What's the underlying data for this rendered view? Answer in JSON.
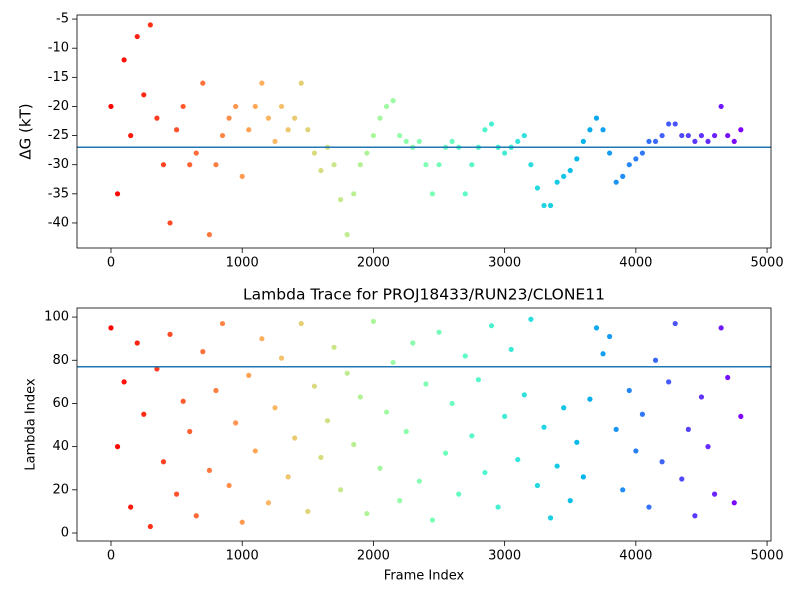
{
  "chart_data": [
    {
      "type": "scatter",
      "ylabel": "ΔG (kT)",
      "colormap": "rainbow_r",
      "hline": -27,
      "hline_color": "#1f77b4",
      "xlim": [
        -259,
        5030
      ],
      "ylim": [
        -44.3,
        -4.3
      ],
      "xticks": [
        0,
        1000,
        2000,
        3000,
        4000,
        5000
      ],
      "yticks": [
        -40,
        -35,
        -30,
        -25,
        -20,
        -15,
        -10,
        -5
      ],
      "x": [
        0,
        50,
        100,
        150,
        200,
        250,
        300,
        350,
        400,
        450,
        500,
        550,
        600,
        650,
        700,
        750,
        800,
        850,
        900,
        950,
        1000,
        1050,
        1100,
        1150,
        1200,
        1250,
        1300,
        1350,
        1400,
        1450,
        1500,
        1550,
        1600,
        1650,
        1700,
        1750,
        1800,
        1850,
        1900,
        1950,
        2000,
        2050,
        2100,
        2150,
        2200,
        2250,
        2300,
        2350,
        2400,
        2450,
        2500,
        2550,
        2600,
        2650,
        2700,
        2750,
        2800,
        2850,
        2900,
        2950,
        3000,
        3050,
        3100,
        3150,
        3200,
        3250,
        3300,
        3350,
        3400,
        3450,
        3500,
        3550,
        3600,
        3650,
        3700,
        3750,
        3800,
        3850,
        3900,
        3950,
        4000,
        4050,
        4100,
        4150,
        4200,
        4250,
        4300,
        4350,
        4400,
        4450,
        4500,
        4550,
        4600,
        4650,
        4700,
        4750,
        4800
      ],
      "values": [
        -20,
        -35,
        -12,
        -25,
        -8,
        -18,
        -6,
        -22,
        -30,
        -40,
        -24,
        -20,
        -30,
        -28,
        -16,
        -42,
        -30,
        -25,
        -22,
        -20,
        -32,
        -24,
        -20,
        -16,
        -22,
        -26,
        -20,
        -24,
        -22,
        -16,
        -24,
        -28,
        -31,
        -27,
        -30,
        -36,
        -42,
        -35,
        -30,
        -28,
        -25,
        -22,
        -20,
        -19,
        -25,
        -26,
        -27,
        -26,
        -30,
        -35,
        -30,
        -27,
        -26,
        -27,
        -35,
        -30,
        -27,
        -24,
        -23,
        -27,
        -28,
        -27,
        -26,
        -25,
        -30,
        -34,
        -37,
        -37,
        -33,
        -32,
        -31,
        -29,
        -26,
        -24,
        -22,
        -24,
        -28,
        -33,
        -32,
        -30,
        -29,
        -28,
        -26,
        -26,
        -25,
        -23,
        -23,
        -25,
        -25,
        -26,
        -25,
        -26,
        -25,
        -20,
        -25,
        -26,
        -24
      ]
    },
    {
      "type": "scatter",
      "title": "Lambda Trace for PROJ18433/RUN23/CLONE11",
      "xlabel": "Frame Index",
      "ylabel": "Lambda Index",
      "colormap": "rainbow_r",
      "hline": 77,
      "hline_color": "#1f77b4",
      "xlim": [
        -259,
        5030
      ],
      "ylim": [
        -3.7,
        104.2
      ],
      "xticks": [
        0,
        1000,
        2000,
        3000,
        4000,
        5000
      ],
      "yticks": [
        0,
        20,
        40,
        60,
        80,
        100
      ],
      "x": [
        0,
        50,
        100,
        150,
        200,
        250,
        300,
        350,
        400,
        450,
        500,
        550,
        600,
        650,
        700,
        750,
        800,
        850,
        900,
        950,
        1000,
        1050,
        1100,
        1150,
        1200,
        1250,
        1300,
        1350,
        1400,
        1450,
        1500,
        1550,
        1600,
        1650,
        1700,
        1750,
        1800,
        1850,
        1900,
        1950,
        2000,
        2050,
        2100,
        2150,
        2200,
        2250,
        2300,
        2350,
        2400,
        2450,
        2500,
        2550,
        2600,
        2650,
        2700,
        2750,
        2800,
        2850,
        2900,
        2950,
        3000,
        3050,
        3100,
        3150,
        3200,
        3250,
        3300,
        3350,
        3400,
        3450,
        3500,
        3550,
        3600,
        3650,
        3700,
        3750,
        3800,
        3850,
        3900,
        3950,
        4000,
        4050,
        4100,
        4150,
        4200,
        4250,
        4300,
        4350,
        4400,
        4450,
        4500,
        4550,
        4600,
        4650,
        4700,
        4750,
        4800
      ],
      "values": [
        95,
        40,
        70,
        12,
        88,
        55,
        3,
        76,
        33,
        92,
        18,
        61,
        47,
        8,
        84,
        29,
        66,
        97,
        22,
        51,
        5,
        73,
        38,
        90,
        14,
        58,
        81,
        26,
        44,
        97,
        10,
        68,
        35,
        52,
        86,
        20,
        74,
        41,
        63,
        9,
        98,
        30,
        56,
        79,
        15,
        47,
        88,
        24,
        69,
        6,
        93,
        37,
        60,
        18,
        82,
        45,
        71,
        28,
        96,
        12,
        54,
        85,
        34,
        64,
        99,
        22,
        49,
        7,
        31,
        58,
        15,
        42,
        26,
        62,
        95,
        83,
        91,
        48,
        20,
        66,
        38,
        55,
        12,
        80,
        33,
        70,
        97,
        25,
        48,
        8,
        63,
        40,
        18,
        95,
        72,
        14,
        54
      ]
    }
  ]
}
